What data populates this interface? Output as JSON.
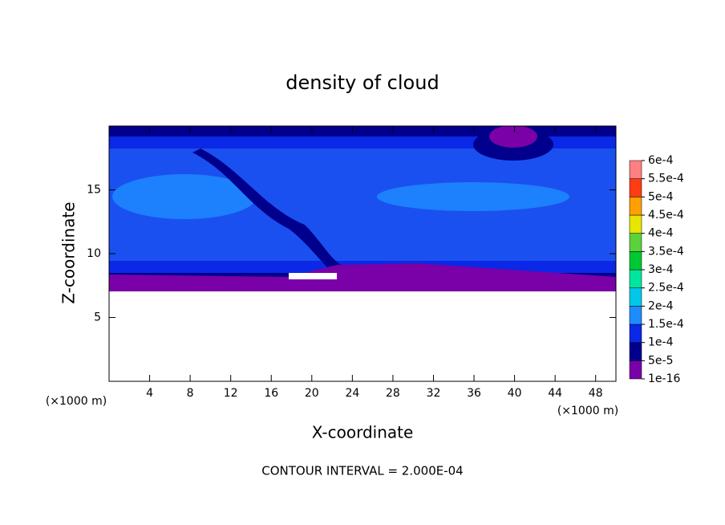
{
  "chart_data": {
    "type": "contour",
    "title": "density of cloud",
    "x_label": "X-coordinate",
    "y_label": "Z-coordinate",
    "x_unit": "(×1000 m)",
    "y_unit": "(×1000 m)",
    "footer": "CONTOUR INTERVAL = 2.000E-04",
    "xlim": [
      0,
      50
    ],
    "xticks": [
      4,
      8,
      12,
      16,
      20,
      24,
      28,
      32,
      36,
      40,
      44,
      48
    ],
    "ylim": [
      0,
      20
    ],
    "yticks": [
      5,
      10,
      15
    ],
    "colorbar": {
      "ticks": [
        {
          "value": 1e-16,
          "label": "1e-16"
        },
        {
          "value": 5e-05,
          "label": "5e-5"
        },
        {
          "value": 0.0001,
          "label": "1e-4"
        },
        {
          "value": 0.00015,
          "label": "1.5e-4"
        },
        {
          "value": 0.0002,
          "label": "2e-4"
        },
        {
          "value": 0.00025,
          "label": "2.5e-4"
        },
        {
          "value": 0.0003,
          "label": "3e-4"
        },
        {
          "value": 0.00035,
          "label": "3.5e-4"
        },
        {
          "value": 0.0004,
          "label": "4e-4"
        },
        {
          "value": 0.00045,
          "label": "4.5e-4"
        },
        {
          "value": 0.0005,
          "label": "5e-4"
        },
        {
          "value": 0.00055,
          "label": "5.5e-4"
        },
        {
          "value": 0.0006,
          "label": "6e-4"
        }
      ],
      "colors": [
        "#7a00a8",
        "#00008c",
        "#0a28e6",
        "#1e8cff",
        "#00c8e6",
        "#00e6a0",
        "#00c832",
        "#5ad23c",
        "#e6e600",
        "#ffa000",
        "#ff3c14",
        "#ff8080"
      ]
    }
  }
}
